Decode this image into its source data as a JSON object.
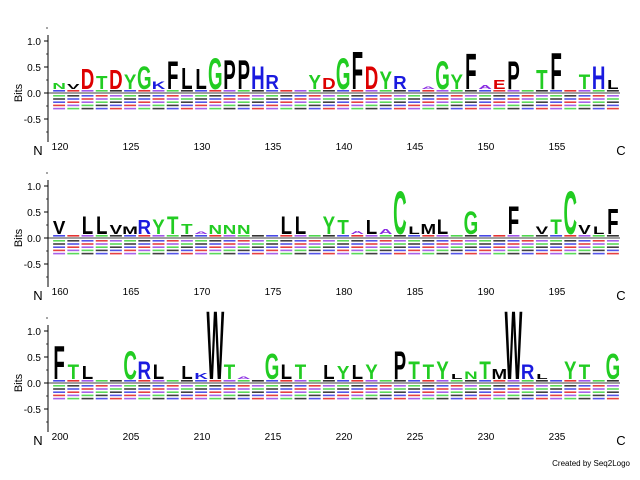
{
  "chart_data": {
    "type": "sequence-logo",
    "ylabel": "Bits",
    "ylim": [
      -0.75,
      1.25
    ],
    "yticks": [
      "1.0",
      "0.5",
      "0.0",
      "-0.5"
    ],
    "ytick_values": [
      1.0,
      0.5,
      0.0,
      -0.5
    ],
    "n_label": "N",
    "c_label": "C",
    "credit": "Created by Seq2Logo",
    "colors": {
      "acidic": "#dd0000",
      "basic": "#1a1adf",
      "polar": "#22cc22",
      "hydrophobic": "#000000",
      "small_neutral": "#8a2be2"
    },
    "panels": [
      {
        "start": 120,
        "tick_labels": [
          "120",
          "125",
          "130",
          "135",
          "140",
          "145",
          "150",
          "155"
        ],
        "tops": [
          [
            "N",
            0.12
          ],
          [
            "V",
            0.1
          ],
          [
            "D",
            0.4
          ],
          [
            "T",
            0.25
          ],
          [
            "D",
            0.38
          ],
          [
            "Y",
            0.3
          ],
          [
            "G",
            0.45
          ],
          [
            "K",
            0.15
          ],
          [
            "F",
            0.55
          ],
          [
            "L",
            0.42
          ],
          [
            "L",
            0.4
          ],
          [
            "G",
            0.62
          ],
          [
            "P",
            0.58
          ],
          [
            "P",
            0.58
          ],
          [
            "H",
            0.45
          ],
          [
            "R",
            0.28
          ],
          [
            "",
            0
          ],
          [
            "",
            0
          ],
          [
            "Y",
            0.28
          ],
          [
            "D",
            0.22
          ],
          [
            "G",
            0.62
          ],
          [
            "F",
            0.75
          ],
          [
            "D",
            0.45
          ],
          [
            "Y",
            0.35
          ],
          [
            "R",
            0.25
          ],
          [
            "",
            0
          ],
          [
            "A",
            0.05
          ],
          [
            "G",
            0.55
          ],
          [
            "Y",
            0.3
          ],
          [
            "F",
            0.7
          ],
          [
            "A",
            0.08
          ],
          [
            "E",
            0.18
          ],
          [
            "P",
            0.55
          ],
          [
            "",
            0
          ],
          [
            "T",
            0.38
          ],
          [
            "F",
            0.72
          ],
          [
            "",
            0
          ],
          [
            "T",
            0.3
          ],
          [
            "H",
            0.45
          ],
          [
            "L",
            0.18
          ]
        ]
      },
      {
        "start": 160,
        "tick_labels": [
          "160",
          "165",
          "170",
          "175",
          "180",
          "185",
          "190",
          "195"
        ],
        "tops": [
          [
            "V",
            0.25
          ],
          [
            "",
            0
          ],
          [
            "L",
            0.35
          ],
          [
            "L",
            0.35
          ],
          [
            "V",
            0.18
          ],
          [
            "M",
            0.15
          ],
          [
            "R",
            0.28
          ],
          [
            "Y",
            0.3
          ],
          [
            "T",
            0.35
          ],
          [
            "T",
            0.2
          ],
          [
            "A",
            0.05
          ],
          [
            "N",
            0.18
          ],
          [
            "N",
            0.18
          ],
          [
            "N",
            0.18
          ],
          [
            "",
            0
          ],
          [
            "",
            0
          ],
          [
            "L",
            0.35
          ],
          [
            "L",
            0.35
          ],
          [
            "",
            0
          ],
          [
            "Y",
            0.35
          ],
          [
            "T",
            0.28
          ],
          [
            "A",
            0.06
          ],
          [
            "L",
            0.28
          ],
          [
            "A",
            0.1
          ],
          [
            "C",
            0.85
          ],
          [
            "L",
            0.15
          ],
          [
            "M",
            0.2
          ],
          [
            "L",
            0.3
          ],
          [
            "",
            0
          ],
          [
            "G",
            0.45
          ],
          [
            "",
            0
          ],
          [
            "",
            0
          ],
          [
            "F",
            0.55
          ],
          [
            "",
            0
          ],
          [
            "V",
            0.15
          ],
          [
            "T",
            0.3
          ],
          [
            "C",
            0.85
          ],
          [
            "V",
            0.18
          ],
          [
            "L",
            0.15
          ],
          [
            "F",
            0.5
          ]
        ]
      },
      {
        "start": 200,
        "tick_labels": [
          "200",
          "205",
          "210",
          "215",
          "220",
          "225",
          "230",
          "235"
        ],
        "tops": [
          [
            "F",
            0.65
          ],
          [
            "T",
            0.3
          ],
          [
            "L",
            0.25
          ],
          [
            "",
            0
          ],
          [
            "",
            0
          ],
          [
            "C",
            0.55
          ],
          [
            "R",
            0.35
          ],
          [
            "L",
            0.3
          ],
          [
            "",
            0
          ],
          [
            "L",
            0.25
          ],
          [
            "K",
            0.12
          ],
          [
            "W",
            1.35
          ],
          [
            "T",
            0.3
          ],
          [
            "A",
            0.05
          ],
          [
            "",
            0
          ],
          [
            "G",
            0.5
          ],
          [
            "L",
            0.3
          ],
          [
            "T",
            0.3
          ],
          [
            "",
            0
          ],
          [
            "L",
            0.28
          ],
          [
            "Y",
            0.25
          ],
          [
            "L",
            0.28
          ],
          [
            "Y",
            0.3
          ],
          [
            "",
            0
          ],
          [
            "P",
            0.55
          ],
          [
            "T",
            0.35
          ],
          [
            "T",
            0.3
          ],
          [
            "Y",
            0.35
          ],
          [
            "L",
            0.1
          ],
          [
            "N",
            0.15
          ],
          [
            "T",
            0.35
          ],
          [
            "M",
            0.2
          ],
          [
            "W",
            1.35
          ],
          [
            "R",
            0.3
          ],
          [
            "L",
            0.1
          ],
          [
            "",
            0
          ],
          [
            "Y",
            0.35
          ],
          [
            "T",
            0.3
          ],
          [
            "",
            0
          ],
          [
            "G",
            0.5
          ]
        ]
      }
    ]
  }
}
